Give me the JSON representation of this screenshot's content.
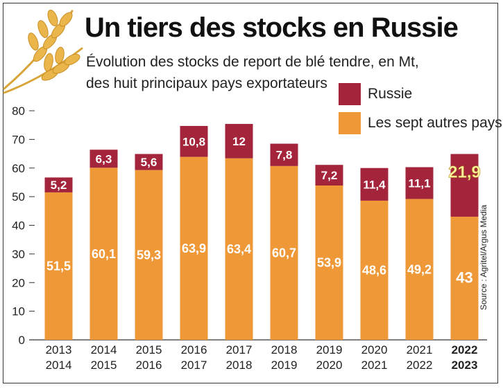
{
  "title": "Un tiers des stocks en Russie",
  "subtitle": "Évolution des stocks de report de blé tendre, en Mt,\ndes huit principaux pays exportateurs",
  "source": "Source : Agritel/Argus Media",
  "legend": [
    {
      "label": "Russie",
      "color": "#a3243b"
    },
    {
      "label": "Les sept autres pays",
      "color": "#ee9838"
    }
  ],
  "icons": {
    "decoration": "wheat-icon"
  },
  "colors": {
    "russia": "#a3243b",
    "others": "#ee9838",
    "highlight_label": "#fdf3a0"
  },
  "chart_data": {
    "type": "bar",
    "stacked": true,
    "title": "Un tiers des stocks en Russie",
    "subtitle": "Évolution des stocks de report de blé tendre, en Mt, des huit principaux pays exportateurs",
    "categories": [
      [
        "2013",
        "2014"
      ],
      [
        "2014",
        "2015"
      ],
      [
        "2015",
        "2016"
      ],
      [
        "2016",
        "2017"
      ],
      [
        "2017",
        "2018"
      ],
      [
        "2018",
        "2019"
      ],
      [
        "2019",
        "2020"
      ],
      [
        "2020",
        "2021"
      ],
      [
        "2021",
        "2022"
      ],
      [
        "2022",
        "2023"
      ]
    ],
    "highlight_category": 9,
    "series": [
      {
        "name": "Les sept autres pays",
        "color": "#ee9838",
        "values": [
          51.5,
          60.1,
          59.3,
          63.9,
          63.4,
          60.7,
          53.9,
          48.6,
          49.2,
          43
        ]
      },
      {
        "name": "Russie",
        "color": "#a3243b",
        "values": [
          5.2,
          6.3,
          5.6,
          10.8,
          12,
          7.8,
          7.2,
          11.4,
          11.1,
          21.9
        ]
      }
    ],
    "labels": {
      "others": [
        "51,5",
        "60,1",
        "59,3",
        "63,9",
        "63,4",
        "60,7",
        "53,9",
        "48,6",
        "49,2",
        "43"
      ],
      "russia": [
        "5,2",
        "6,3",
        "5,6",
        "10,8",
        "12",
        "7,8",
        "7,2",
        "11,4",
        "11,1",
        "21,9"
      ]
    },
    "y_ticks": [
      "0",
      "10",
      "20",
      "30",
      "40",
      "50",
      "60",
      "70",
      "80"
    ],
    "ylim": [
      0,
      80
    ],
    "grid": false,
    "legend_position": "top-right"
  }
}
